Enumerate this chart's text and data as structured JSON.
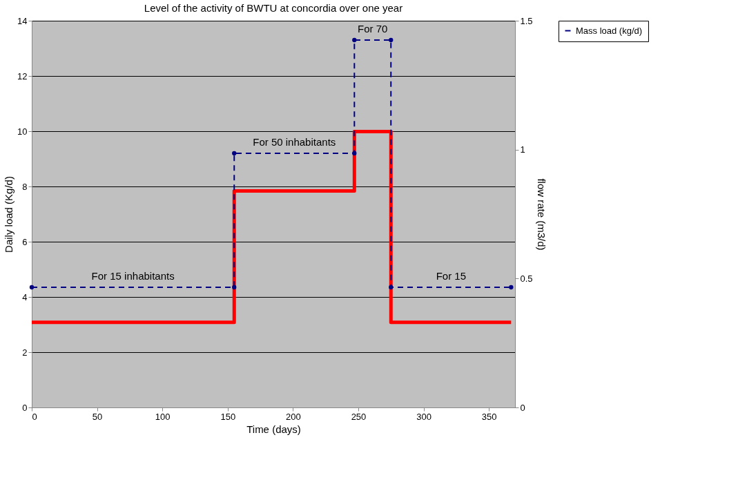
{
  "chart_data": {
    "type": "line",
    "title": "Level of the activity of BWTU at concordia over one year",
    "xlabel": "Time (days)",
    "ylabel": "Daily load (Kg/d)",
    "y2label": "flow rate (m3/d)",
    "xlim": [
      0,
      370
    ],
    "xticks": [
      0,
      50,
      100,
      150,
      200,
      250,
      300,
      350
    ],
    "ylim": [
      0,
      14
    ],
    "yticks": [
      0,
      2,
      4,
      6,
      8,
      10,
      12,
      14
    ],
    "y2lim": [
      0,
      1.5
    ],
    "y2ticks": [
      0,
      0.5,
      1,
      1.5
    ],
    "grid": "y",
    "legend": "right",
    "series": [
      {
        "name": "Mass load (kg/d)",
        "color": "#000080",
        "marker": "circle",
        "line_style": "dashed",
        "x": [
          0,
          155,
          155,
          247,
          247,
          275,
          275,
          367
        ],
        "values": [
          4.35,
          4.35,
          9.2,
          9.2,
          13.3,
          13.3,
          4.35,
          4.35
        ]
      },
      {
        "color": "#ff0000",
        "axis": "y2",
        "line_style": "solid",
        "x": [
          0,
          155,
          155,
          247,
          247,
          275,
          275,
          367
        ],
        "values": [
          0.33,
          0.33,
          0.84,
          0.84,
          1.07,
          1.07,
          0.33,
          0.33
        ]
      }
    ],
    "annotations": [
      "For 15 inhabitants",
      "For 50 inhabitants",
      "For 70",
      "For 15"
    ]
  }
}
